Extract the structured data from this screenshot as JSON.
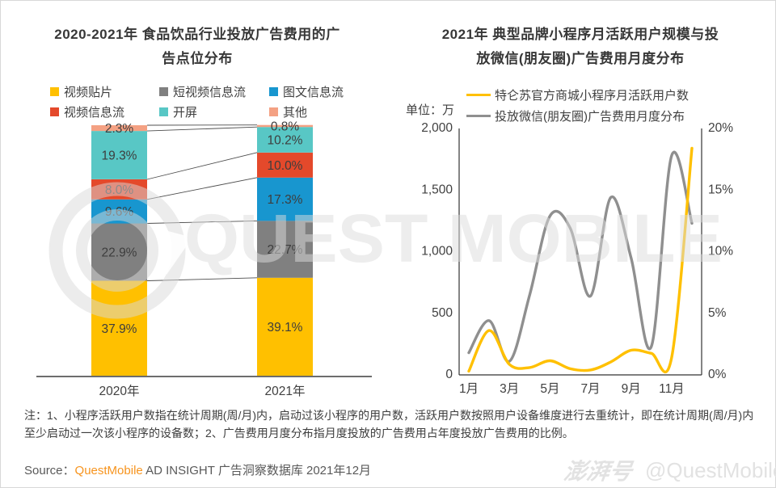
{
  "page": {
    "footnote": "注：1、小程序活跃用户数指在统计周期(周/月)内，启动过该小程序的用户数，活跃用户数按照用户设备维度进行去重统计，即在统计周期(周/月)内至少启动过一次该小程序的设备数；2、广告费用月度分布指月度投放的广告费用占年度投放广告费用的比例。",
    "source_prefix": "Source：",
    "source_brand": "QuestMobile",
    "source_rest": " AD INSIGHT 广告洞察数据库 2021年12月",
    "brand_color": "#F7941E",
    "watermark_text": "QUEST MOBILE",
    "badge_logo": "澎湃号",
    "badge_handle": "@QuestMobile"
  },
  "chart_data": [
    {
      "type": "bar",
      "stacked": true,
      "title_lines": [
        "2020-2021年 食品饮品行业投放广告费用的广",
        "告点位分布"
      ],
      "categories": [
        "2020年",
        "2021年"
      ],
      "series": [
        {
          "name": "视频贴片",
          "color": "#FFC000",
          "values": [
            37.9,
            39.1
          ]
        },
        {
          "name": "短视频信息流",
          "color": "#808080",
          "values": [
            22.9,
            22.7
          ]
        },
        {
          "name": "图文信息流",
          "color": "#1896CF",
          "values": [
            9.6,
            17.3
          ]
        },
        {
          "name": "视频信息流",
          "color": "#E4492B",
          "values": [
            8.0,
            10.0
          ]
        },
        {
          "name": "开屏",
          "color": "#58C7C5",
          "values": [
            19.3,
            10.2
          ]
        },
        {
          "name": "其他",
          "color": "#F4A183",
          "values": [
            2.3,
            0.8
          ]
        }
      ],
      "value_suffix": "%",
      "ylim": [
        0,
        100
      ],
      "grid": false,
      "legend_position": "top"
    },
    {
      "type": "line",
      "smooth": true,
      "title_lines": [
        "2021年 典型品牌小程序月活跃用户规模与投",
        "放微信(朋友圈)广告费用月度分布"
      ],
      "unit_label": "单位：万",
      "x": [
        "1月",
        "2月",
        "3月",
        "4月",
        "5月",
        "6月",
        "7月",
        "8月",
        "9月",
        "10月",
        "11月",
        "12月"
      ],
      "x_tick_labels": [
        "1月",
        "3月",
        "5月",
        "7月",
        "9月",
        "11月"
      ],
      "y_left": {
        "ticks": [
          "2,000",
          "1,500",
          "1,000",
          "500",
          "0"
        ],
        "min": 0,
        "max": 2000
      },
      "y_right": {
        "ticks": [
          "20%",
          "15%",
          "10%",
          "5%",
          "0%"
        ],
        "min": 0,
        "max": 20
      },
      "grid": false,
      "legend_position": "top",
      "series": [
        {
          "name": "特仑苏官方商城小程序月活跃用户数",
          "color": "#FFC000",
          "axis": "left",
          "values": [
            30,
            360,
            85,
            60,
            115,
            50,
            40,
            105,
            200,
            175,
            140,
            1840
          ]
        },
        {
          "name": "投放微信(朋友圈)广告费用月度分布",
          "color": "#8F8F8F",
          "axis": "right",
          "values": [
            1.8,
            4.4,
            1.1,
            6.5,
            12.9,
            11.9,
            6.4,
            14.4,
            9.5,
            2.3,
            17.8,
            12.3
          ]
        }
      ]
    }
  ]
}
